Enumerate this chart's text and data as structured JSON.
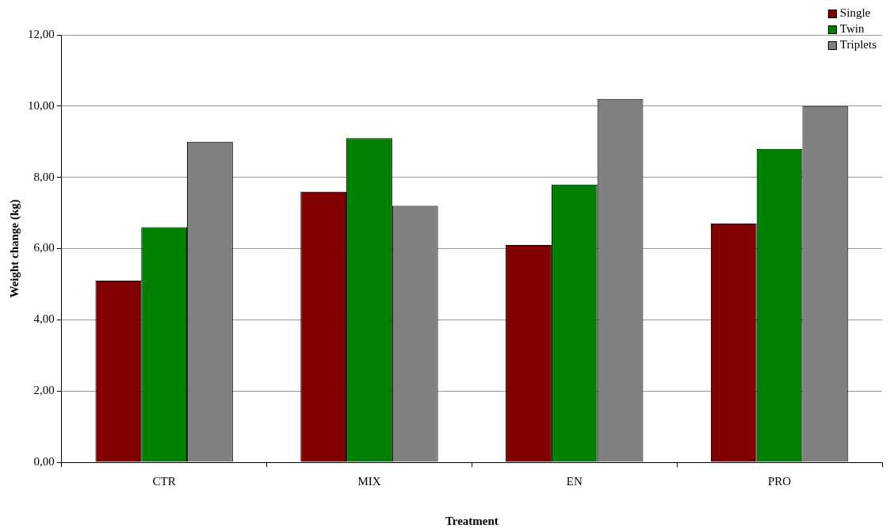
{
  "chart_data": {
    "type": "bar",
    "xlabel": "Treatment",
    "ylabel": "Weight change (kg)",
    "categories": [
      "CTR",
      "MIX",
      "EN",
      "PRO"
    ],
    "series": [
      {
        "name": "Single",
        "color": "#800000",
        "values": [
          5.1,
          7.6,
          6.1,
          6.7
        ]
      },
      {
        "name": "Twin",
        "color": "#008000",
        "values": [
          6.6,
          9.1,
          7.8,
          8.8
        ]
      },
      {
        "name": "Triplets",
        "color": "#808080",
        "values": [
          9.0,
          7.2,
          10.2,
          10.0
        ]
      }
    ],
    "ylim": [
      0,
      12
    ],
    "yticks": [
      {
        "value": 0,
        "label": "0,00"
      },
      {
        "value": 2,
        "label": "2,00"
      },
      {
        "value": 4,
        "label": "4,00"
      },
      {
        "value": 6,
        "label": "6,00"
      },
      {
        "value": 8,
        "label": "8,00"
      },
      {
        "value": 10,
        "label": "10,00"
      },
      {
        "value": 12,
        "label": "12,00"
      }
    ],
    "grid": "y",
    "legend": "top right"
  }
}
